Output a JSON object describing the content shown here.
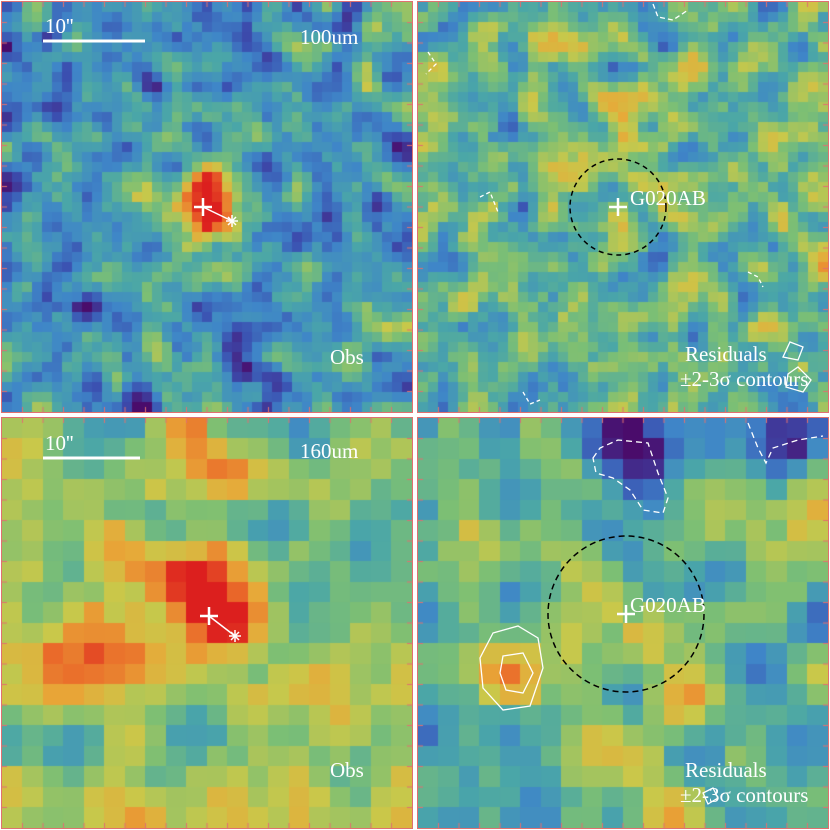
{
  "panels": [
    {
      "id": "obs-100",
      "band": "100um",
      "corner": "Obs",
      "scalebar": "10''",
      "grid": 41,
      "source": "blob"
    },
    {
      "id": "res-100",
      "source_name": "G020AB",
      "residuals": "Residuals",
      "contours": "±2-3σ contours",
      "grid": 41
    },
    {
      "id": "obs-160",
      "band": "160um",
      "corner": "Obs",
      "scalebar": "10''",
      "grid": 20,
      "source": "blob"
    },
    {
      "id": "res-160",
      "source_name": "G020AB",
      "residuals": "Residuals",
      "contours": "±2-3σ contours",
      "grid": 20
    }
  ],
  "colormap": [
    "#4a0c6b",
    "#3b4fb0",
    "#3f86c8",
    "#4aa6a8",
    "#7cbf74",
    "#c9c84a",
    "#e8a838",
    "#ea6a2a",
    "#dc1e1e"
  ],
  "border_color": "#e07070",
  "marker_color": "#ffffff"
}
